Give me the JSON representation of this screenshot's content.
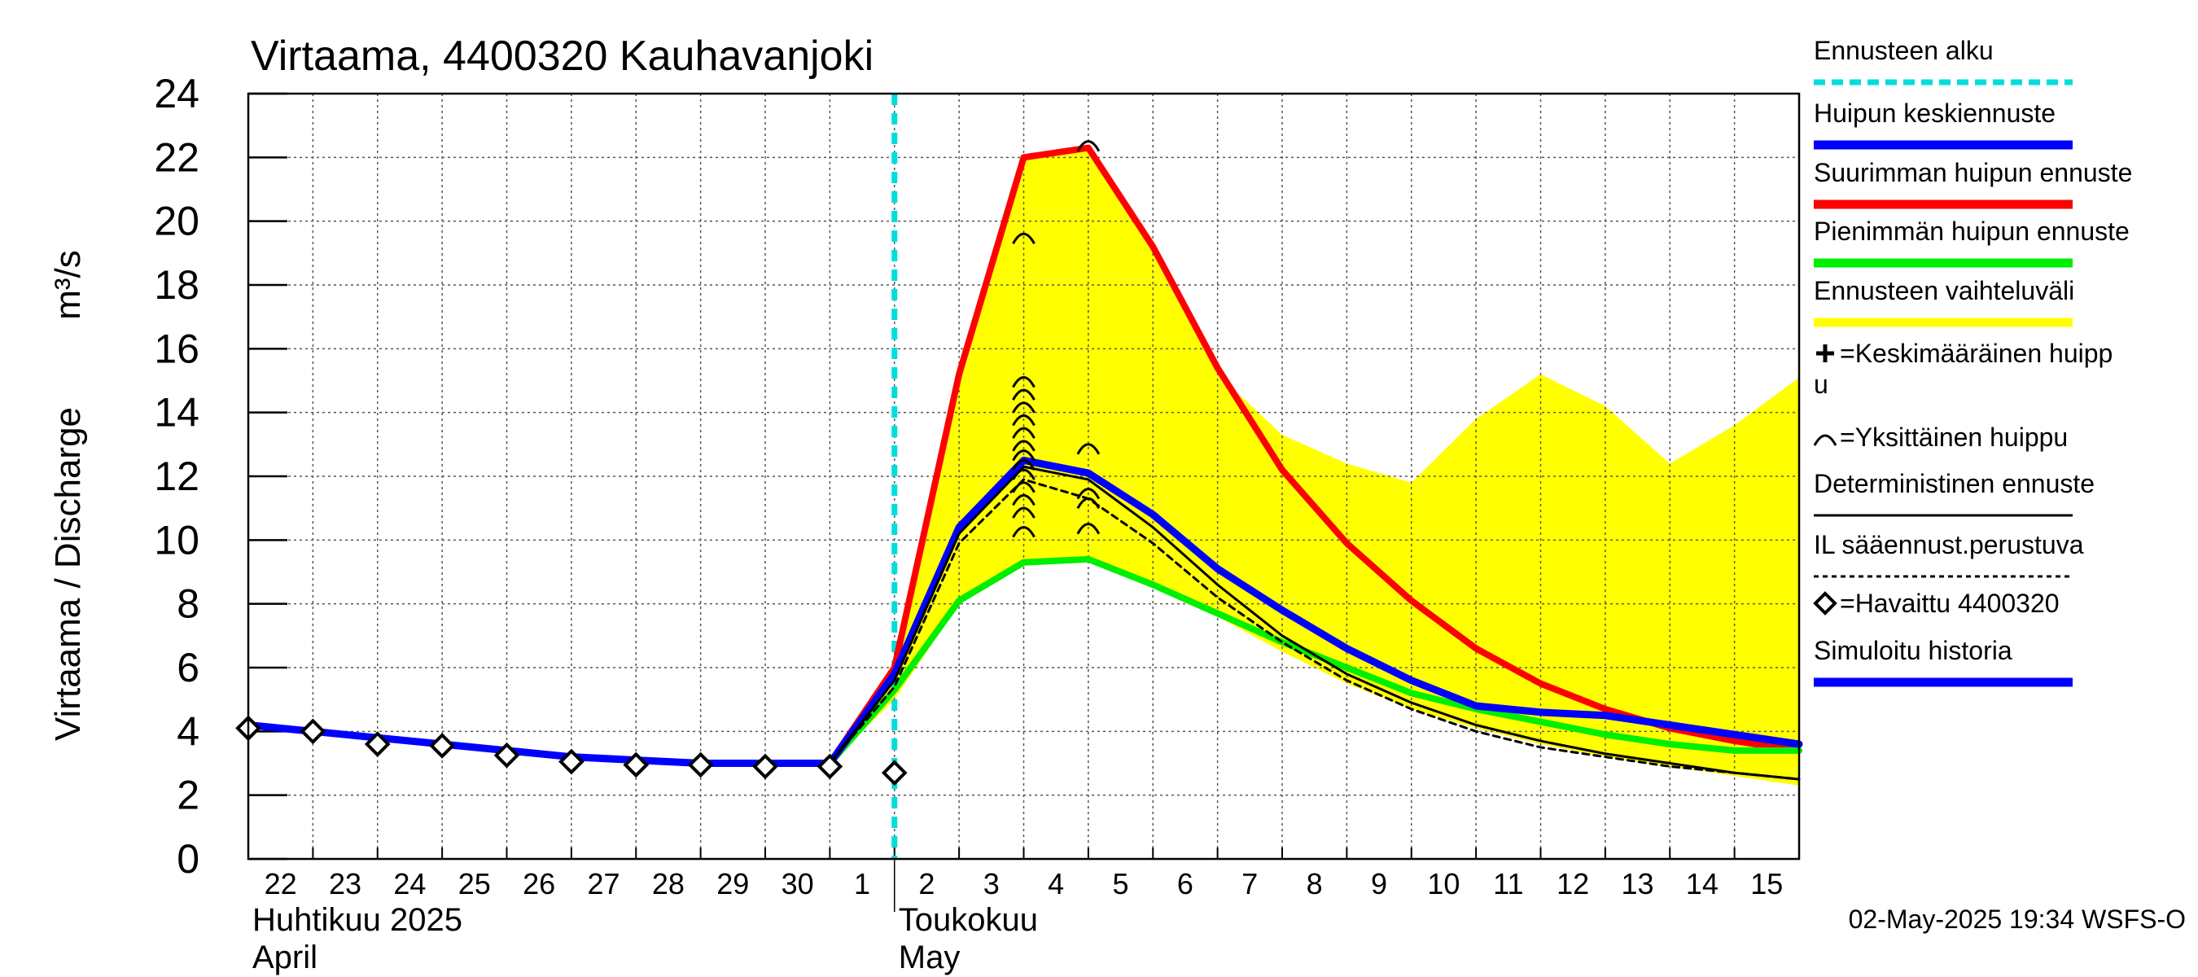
{
  "chart_data": {
    "type": "line",
    "title": "Virtaama, 4400320 Kauhavanjoki",
    "ylabel": "Virtaama / Discharge",
    "yunit": "m³/s",
    "ylim": [
      0,
      24
    ],
    "yticks": [
      0,
      2,
      4,
      6,
      8,
      10,
      12,
      14,
      16,
      18,
      20,
      22,
      24
    ],
    "xlim": [
      0,
      24
    ],
    "grid": true,
    "day_labels": [
      "22",
      "23",
      "24",
      "25",
      "26",
      "27",
      "28",
      "29",
      "30",
      "1",
      "2",
      "3",
      "4",
      "5",
      "6",
      "7",
      "8",
      "9",
      "10",
      "11",
      "12",
      "13",
      "14",
      "15"
    ],
    "month_labels": [
      {
        "fi": "Huhtikuu  2025",
        "en": "April",
        "day_index": 0
      },
      {
        "fi": "Toukokuu",
        "en": "May",
        "day_index": 10
      }
    ],
    "forecast_start_x": 10.0,
    "x": [
      0,
      1,
      2,
      3,
      4,
      5,
      6,
      7,
      8,
      9,
      10,
      11,
      12,
      13,
      14,
      15,
      16,
      17,
      18,
      19,
      20,
      21,
      22,
      23,
      24
    ],
    "band": {
      "name": "Ennusteen vaihteluväli",
      "upper": [
        4.2,
        4.0,
        3.8,
        3.6,
        3.4,
        3.2,
        3.1,
        3.0,
        3.0,
        3.0,
        6.1,
        15.2,
        22.0,
        22.3,
        19.0,
        15.2,
        13.3,
        12.4,
        11.8,
        13.8,
        15.2,
        14.2,
        12.4,
        13.6,
        15.1
      ],
      "lower": [
        4.2,
        4.0,
        3.8,
        3.6,
        3.4,
        3.2,
        3.1,
        3.0,
        3.0,
        3.0,
        5.0,
        8.0,
        9.2,
        9.4,
        8.6,
        7.6,
        6.5,
        5.5,
        4.7,
        4.1,
        3.6,
        3.2,
        2.9,
        2.6,
        2.3
      ]
    },
    "series": [
      {
        "name": "Suurimman huipun ennuste",
        "color": "#ff0000",
        "width": 8,
        "start": 9,
        "values": [
          null,
          null,
          null,
          null,
          null,
          null,
          null,
          null,
          null,
          3.0,
          6.0,
          15.2,
          22.0,
          22.3,
          19.2,
          15.4,
          12.2,
          9.9,
          8.1,
          6.6,
          5.5,
          4.7,
          4.1,
          3.7,
          3.4
        ]
      },
      {
        "name": "Pienimmän huipun ennuste",
        "color": "#00ee00",
        "width": 8,
        "start": 9,
        "values": [
          null,
          null,
          null,
          null,
          null,
          null,
          null,
          null,
          null,
          3.0,
          5.3,
          8.1,
          9.3,
          9.4,
          8.6,
          7.7,
          6.8,
          6.0,
          5.2,
          4.7,
          4.3,
          3.9,
          3.6,
          3.4,
          3.4
        ]
      },
      {
        "name": "Huipun keskiennuste",
        "color": "#0000ff",
        "width": 9,
        "start": 0,
        "values": [
          4.2,
          4.0,
          3.8,
          3.6,
          3.4,
          3.2,
          3.1,
          3.0,
          3.0,
          3.0,
          5.8,
          10.4,
          12.5,
          12.1,
          10.8,
          9.1,
          7.8,
          6.6,
          5.6,
          4.8,
          4.6,
          4.5,
          4.2,
          3.9,
          3.6
        ]
      },
      {
        "name": "Deterministinen ennuste",
        "color": "#000000",
        "width": 3,
        "start": 9,
        "values": [
          null,
          null,
          null,
          null,
          null,
          null,
          null,
          null,
          null,
          3.0,
          5.6,
          10.2,
          12.3,
          11.9,
          10.4,
          8.6,
          7.0,
          5.8,
          4.9,
          4.2,
          3.7,
          3.3,
          3.0,
          2.7,
          2.5
        ]
      },
      {
        "name": "IL sääennust.perustuva",
        "color": "#000000",
        "width": 3,
        "dash": true,
        "start": 9,
        "values": [
          null,
          null,
          null,
          null,
          null,
          null,
          null,
          null,
          null,
          3.0,
          5.4,
          9.9,
          11.9,
          11.3,
          9.9,
          8.2,
          6.8,
          5.6,
          4.7,
          4.0,
          3.5,
          3.2,
          2.9,
          2.7,
          2.5
        ]
      }
    ],
    "observed": {
      "name": "Havaittu 4400320",
      "x": [
        0,
        1,
        2,
        3,
        4,
        5,
        6,
        7,
        8,
        9,
        10
      ],
      "y": [
        4.1,
        4.0,
        3.6,
        3.55,
        3.25,
        3.05,
        2.95,
        2.95,
        2.9,
        2.9,
        2.7
      ]
    },
    "peaks": [
      {
        "x": 12,
        "y": 19.5
      },
      {
        "x": 12,
        "y": 15.0
      },
      {
        "x": 12,
        "y": 14.6
      },
      {
        "x": 12,
        "y": 14.2
      },
      {
        "x": 12,
        "y": 13.8
      },
      {
        "x": 12,
        "y": 13.4
      },
      {
        "x": 12,
        "y": 13.0
      },
      {
        "x": 12,
        "y": 12.7
      },
      {
        "x": 12,
        "y": 12.4
      },
      {
        "x": 12,
        "y": 12.1
      },
      {
        "x": 12,
        "y": 11.7
      },
      {
        "x": 12,
        "y": 11.3
      },
      {
        "x": 12,
        "y": 10.9
      },
      {
        "x": 12,
        "y": 10.3
      },
      {
        "x": 13,
        "y": 22.4
      },
      {
        "x": 13,
        "y": 12.9
      },
      {
        "x": 13,
        "y": 11.5
      },
      {
        "x": 13,
        "y": 11.2
      },
      {
        "x": 13,
        "y": 10.4
      }
    ],
    "legend": [
      {
        "label": "Ennusteen alku",
        "kind": "dashed",
        "color": "#00dddd"
      },
      {
        "label": "Huipun keskiennuste",
        "kind": "line",
        "color": "#0000ff"
      },
      {
        "label": "Suurimman huipun ennuste",
        "kind": "line",
        "color": "#ff0000"
      },
      {
        "label": "Pienimmän huipun ennuste",
        "kind": "line",
        "color": "#00ee00"
      },
      {
        "label": "Ennusteen vaihteluväli",
        "kind": "line",
        "color": "#ffff00"
      },
      {
        "label": "=Keskimääräinen huipp",
        "label2": "u",
        "kind": "plus",
        "color": "#000000"
      },
      {
        "label": "=Yksittäinen huippu",
        "kind": "arc",
        "color": "#000000"
      },
      {
        "label": "Deterministinen ennuste",
        "kind": "thin",
        "color": "#000000"
      },
      {
        "label": "IL sääennust.perustuva",
        "kind": "dotted",
        "color": "#000000"
      },
      {
        "label": "=Havaittu 4400320",
        "kind": "diamond",
        "color": "#000000"
      },
      {
        "label": "Simuloitu historia",
        "kind": "line",
        "color": "#0000ff"
      }
    ],
    "footer": "02-May-2025 19:34 WSFS-O",
    "colors": {
      "band": "#ffff00",
      "forecast_start": "#00dddd",
      "grid": "#555555"
    }
  }
}
